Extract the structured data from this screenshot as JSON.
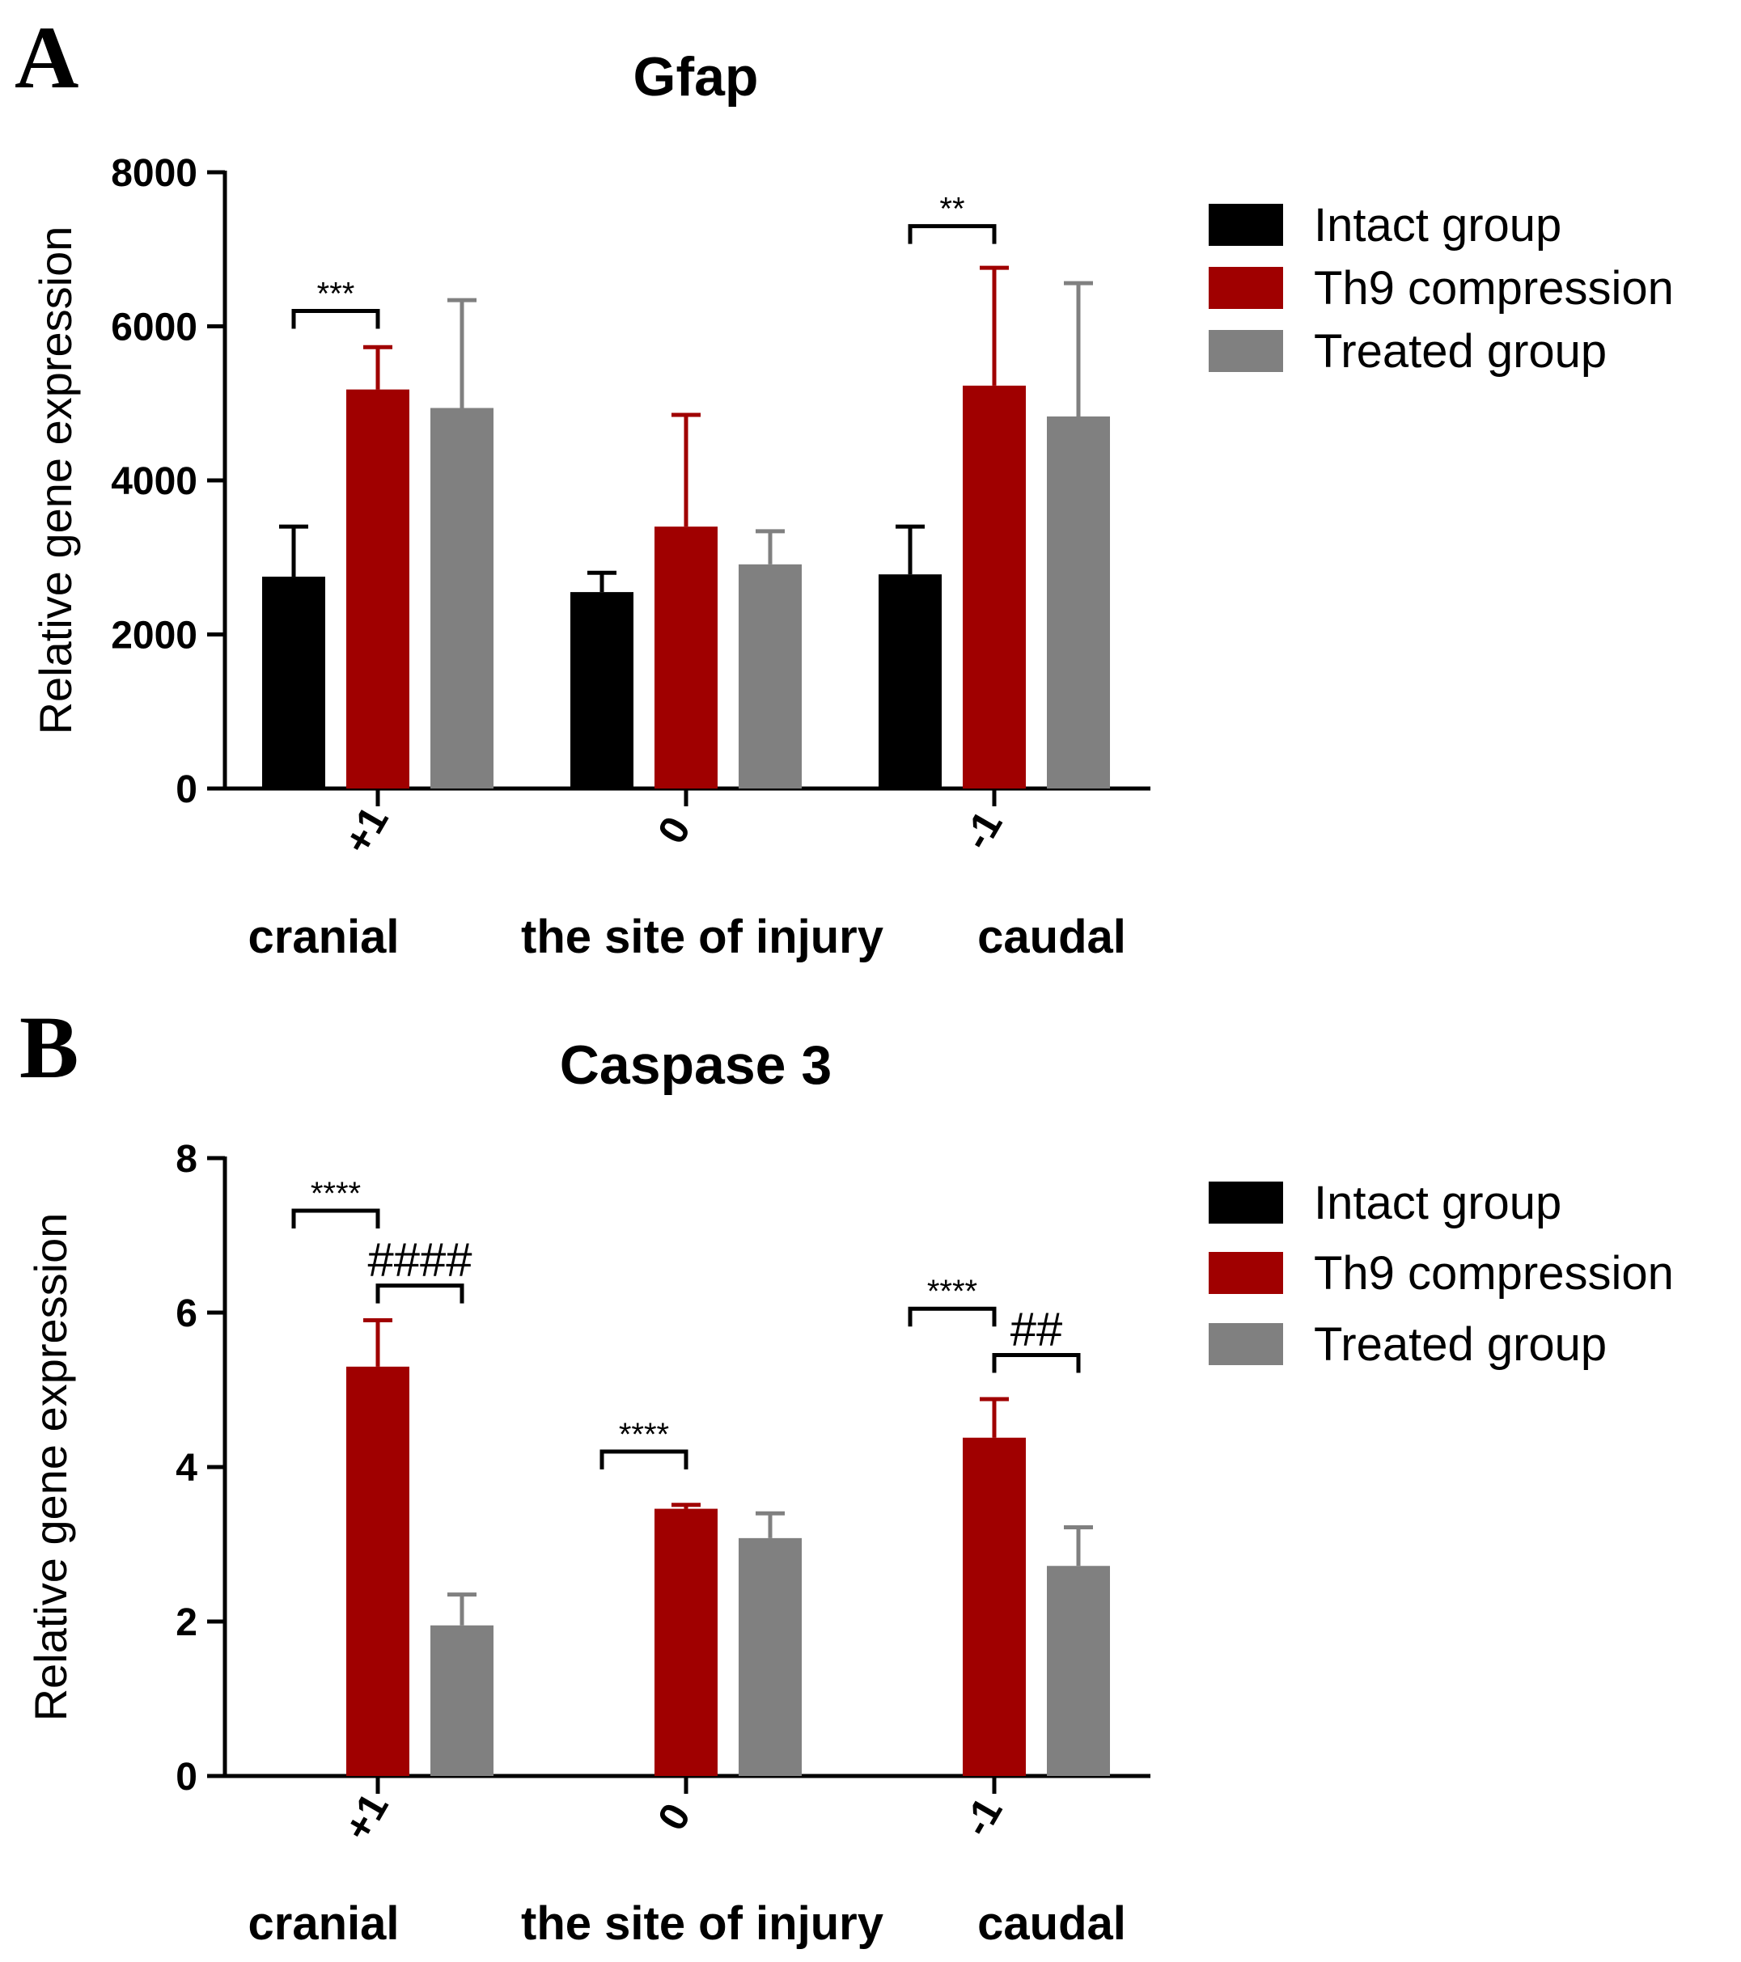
{
  "chart_data": [
    {
      "panel": "A",
      "type": "bar",
      "title": "Gfap",
      "ylabel": "Relative gene expression",
      "xlabel": "",
      "ylim": [
        0,
        8000
      ],
      "yticks": [
        "0",
        "2000",
        "4000",
        "6000",
        "8000"
      ],
      "categories": [
        "+1",
        "0",
        "-1"
      ],
      "regions": [
        "cranial",
        "the site of injury",
        "caudal"
      ],
      "legend": {
        "position": "right",
        "entries": [
          "Intact group",
          "Th9 compression",
          "Treated group"
        ]
      },
      "series": [
        {
          "name": "Intact group",
          "color": "#000000",
          "values": [
            2750,
            2550,
            2780
          ],
          "errors": [
            650,
            250,
            620
          ]
        },
        {
          "name": "Th9 compression",
          "color": "#a00000",
          "values": [
            5180,
            3400,
            5230
          ],
          "errors": [
            550,
            1450,
            1530
          ]
        },
        {
          "name": "Treated group",
          "color": "#808080",
          "values": [
            4940,
            2910,
            4830
          ],
          "errors": [
            1400,
            430,
            1730
          ]
        }
      ],
      "annotations": [
        {
          "text": "***",
          "category": 0,
          "from": 0,
          "to": 1,
          "value": 6200
        },
        {
          "text": "**",
          "category": 2,
          "from": 0,
          "to": 1,
          "value": 7300
        }
      ]
    },
    {
      "panel": "B",
      "type": "bar",
      "title": "Caspase 3",
      "ylabel": "Relative gene expression",
      "xlabel": "",
      "ylim": [
        0,
        8
      ],
      "yticks": [
        "0",
        "2",
        "4",
        "6",
        "8"
      ],
      "categories": [
        "+1",
        "0",
        "-1"
      ],
      "regions": [
        "cranial",
        "the site of injury",
        "caudal"
      ],
      "legend": {
        "position": "right",
        "entries": [
          "Intact group",
          "Th9 compression",
          "Treated group"
        ]
      },
      "series": [
        {
          "name": "Intact group",
          "color": "#000000",
          "values": [
            0,
            0,
            0
          ],
          "errors": [
            0,
            0,
            0
          ]
        },
        {
          "name": "Th9 compression",
          "color": "#a00000",
          "values": [
            5.3,
            3.46,
            4.38
          ],
          "errors": [
            0.6,
            0.05,
            0.5
          ]
        },
        {
          "name": "Treated group",
          "color": "#808080",
          "values": [
            1.95,
            3.08,
            2.72
          ],
          "errors": [
            0.4,
            0.32,
            0.5
          ]
        }
      ],
      "annotations": [
        {
          "text": "****",
          "category": 0,
          "from": 0,
          "to": 1,
          "value": 7.32
        },
        {
          "text": "####",
          "category": 0,
          "from": 1,
          "to": 2,
          "value": 6.35
        },
        {
          "text": "****",
          "category": 1,
          "from": 0,
          "to": 1,
          "value": 4.2
        },
        {
          "text": "****",
          "category": 2,
          "from": 0,
          "to": 1,
          "value": 6.05
        },
        {
          "text": "##",
          "category": 2,
          "from": 1,
          "to": 2,
          "value": 5.45
        }
      ]
    }
  ]
}
